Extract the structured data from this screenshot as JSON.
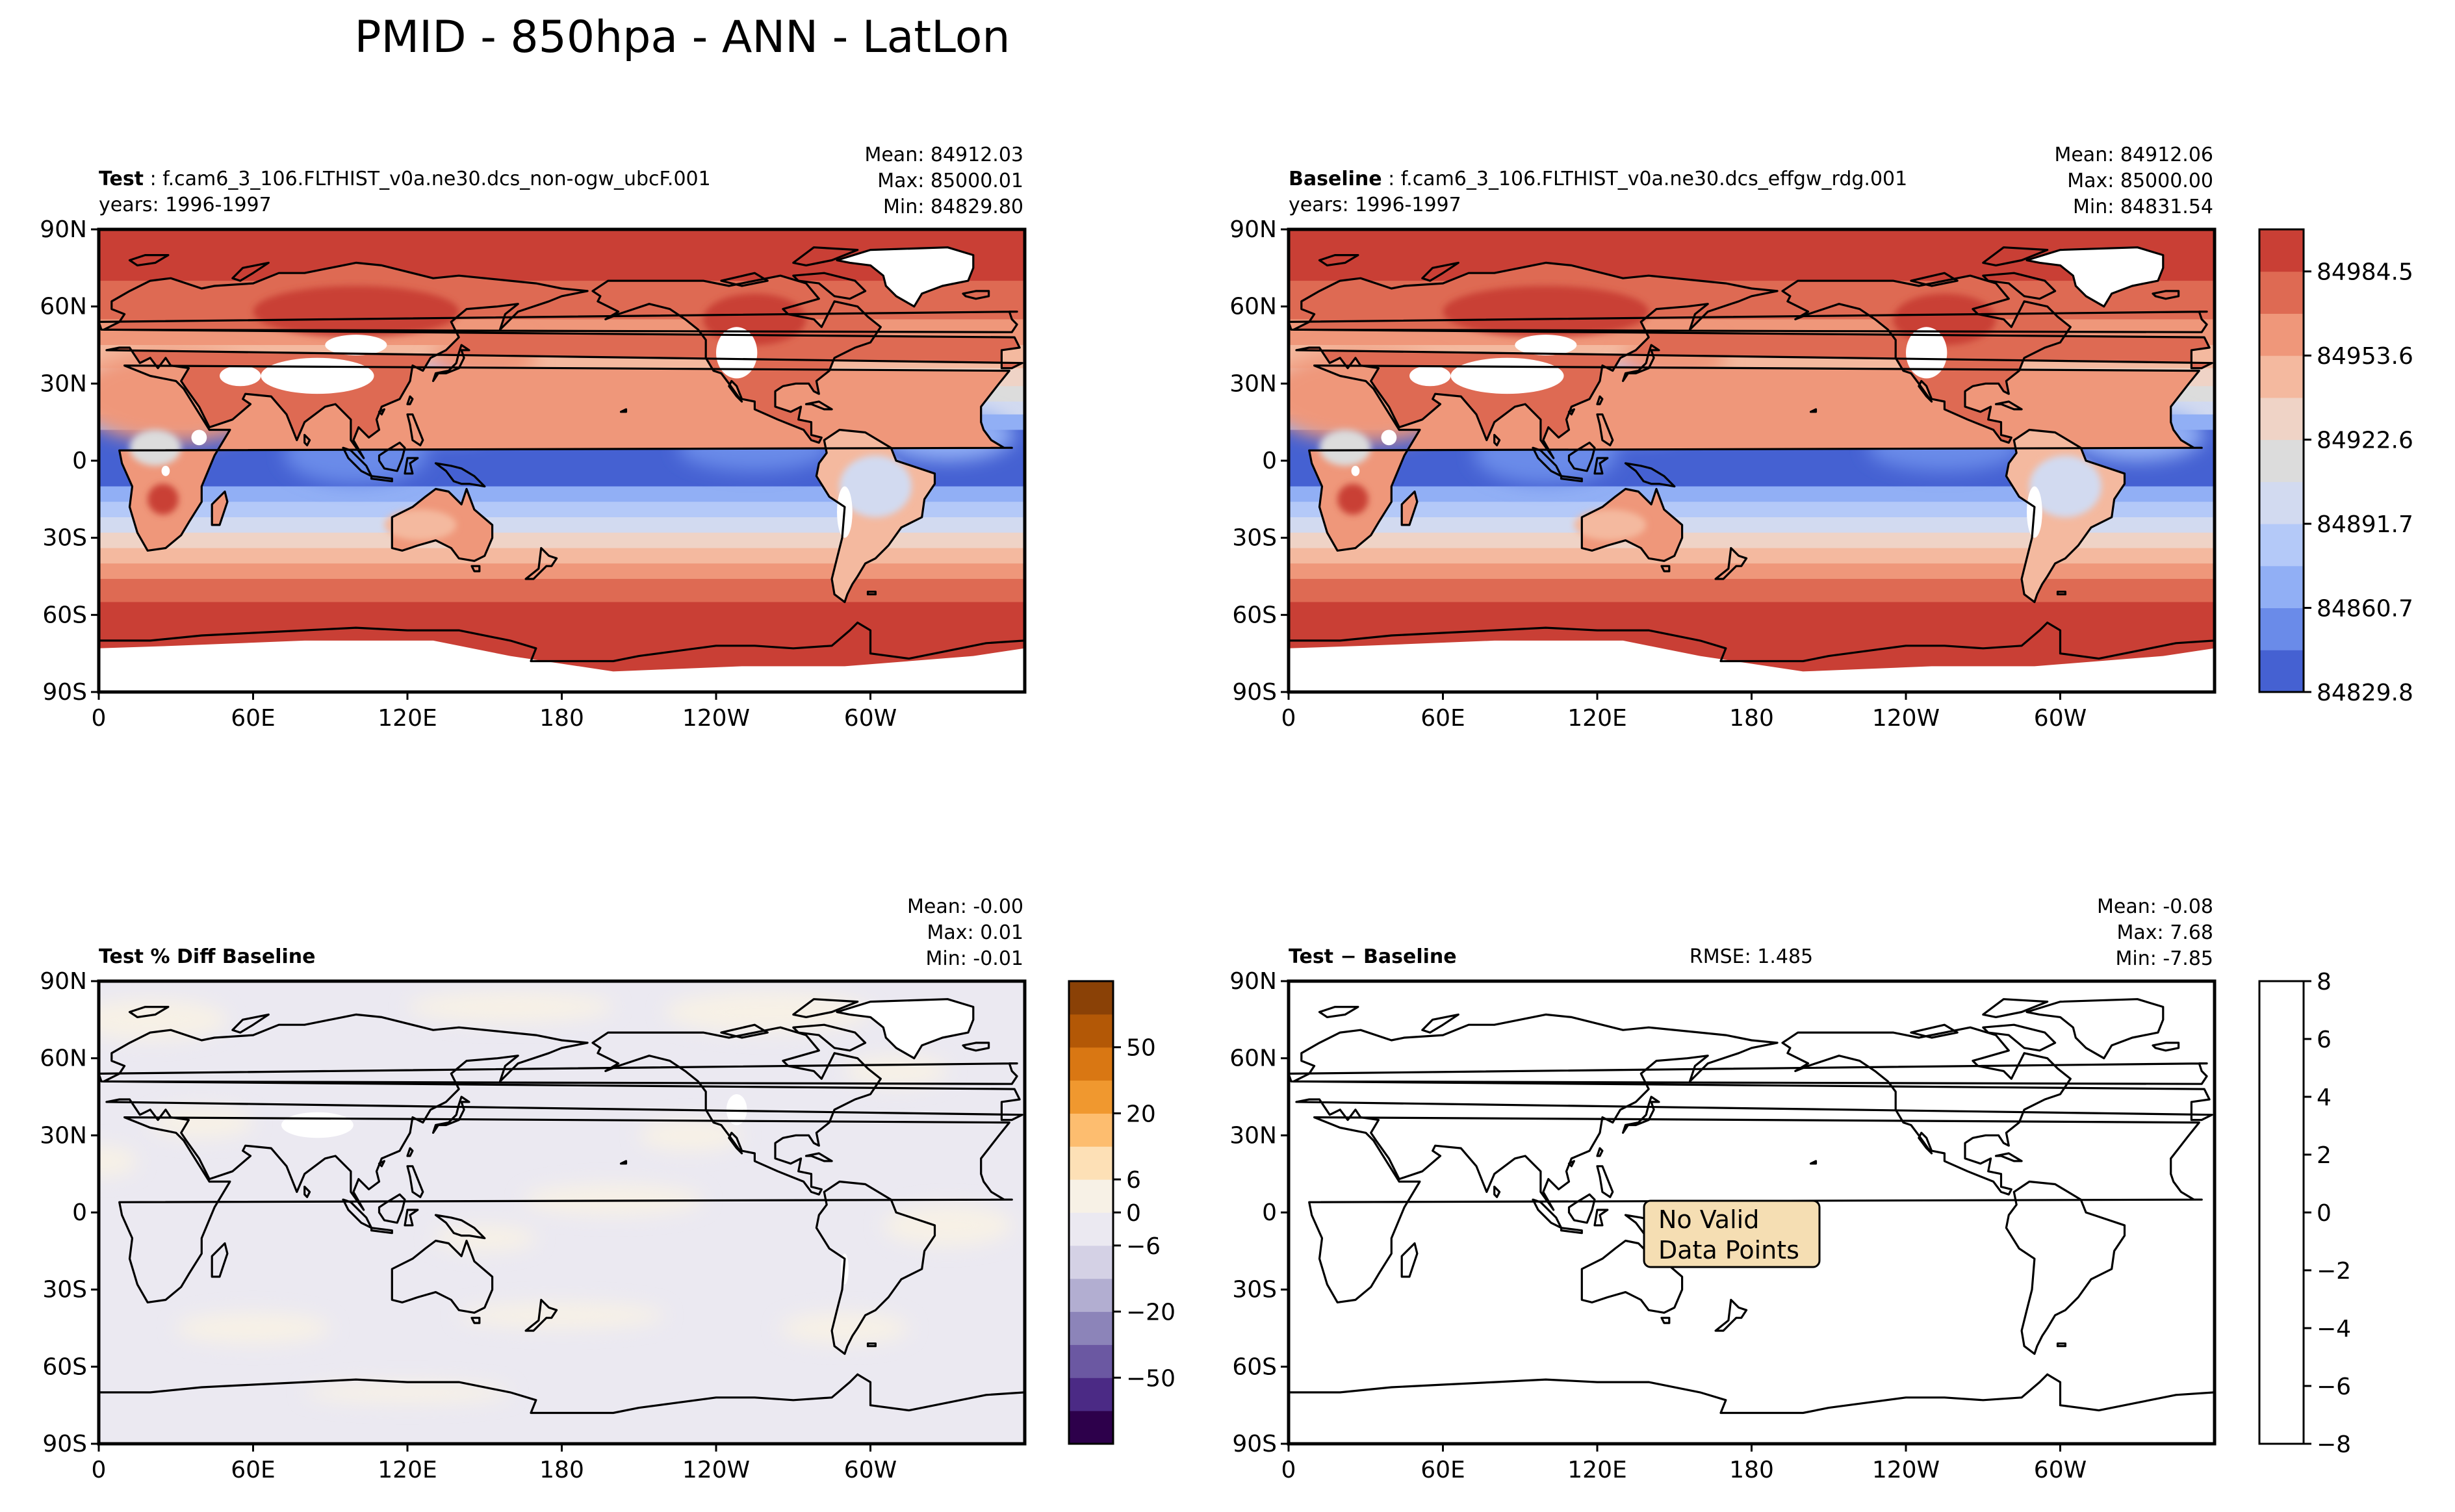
{
  "figure": {
    "title": "PMID - 850hpa - ANN - LatLon"
  },
  "colors": {
    "main_levels": [
      "#4561d2",
      "#6a8be9",
      "#91aff5",
      "#b4c9f8",
      "#d2daf0",
      "#dcdcdc",
      "#efd3c6",
      "#f4b99f",
      "#ef977a",
      "#de6a53",
      "#c93f35"
    ],
    "diff_levels": [
      "#2d004b",
      "#4b2a85",
      "#6b58a2",
      "#8c84b9",
      "#b2aed1",
      "#d4d1e5",
      "#ebe9f1",
      "#f7f1e6",
      "#fde0b6",
      "#fdbd6f",
      "#f0982f",
      "#d97713",
      "#b35806",
      "#8a4106"
    ],
    "land": "#000000",
    "panel4_bg": "#ffffff",
    "nodata_box": "#f5deb3"
  },
  "axes": {
    "yticks": [
      "90N",
      "60N",
      "30N",
      "0",
      "30S",
      "60S",
      "90S"
    ],
    "xticks": [
      "0",
      "60E",
      "120E",
      "180",
      "120W",
      "60W"
    ]
  },
  "panels": [
    {
      "id": "test",
      "label_bold": "Test",
      "label_rest": " : f.cam6_3_106.FLTHIST_v0a.ne30.dcs_non-ogw_ubcF.001",
      "years": "years: 1996-1997",
      "stats": {
        "mean": "Mean: 84912.03",
        "max": "Max: 85000.01",
        "min": "Min: 84829.80"
      }
    },
    {
      "id": "baseline",
      "label_bold": "Baseline",
      "label_rest": " : f.cam6_3_106.FLTHIST_v0a.ne30.dcs_effgw_rdg.001",
      "years": "years: 1996-1997",
      "stats": {
        "mean": "Mean: 84912.06",
        "max": "Max: 85000.00",
        "min": "Min: 84831.54"
      }
    },
    {
      "id": "pctdiff",
      "label_bold": "Test % Diff Baseline",
      "stats": {
        "mean": "Mean: -0.00",
        "max": "Max:  0.01",
        "min": "Min: -0.01"
      }
    },
    {
      "id": "diff",
      "label_bold": "Test − Baseline",
      "rmse": "RMSE: 1.485",
      "stats": {
        "mean": "Mean: -0.08",
        "max": "Max:  7.68",
        "min": "Min: -7.85"
      },
      "nodata_line1": "No Valid",
      "nodata_line2": "Data Points"
    }
  ],
  "colorbars": {
    "main": {
      "ticks": [
        "84984.5",
        "84953.6",
        "84922.6",
        "84891.7",
        "84860.7",
        "84829.8"
      ]
    },
    "pct": {
      "ticks": [
        "50",
        "20",
        "6",
        "0",
        "−6",
        "−20",
        "−50"
      ]
    },
    "diff": {
      "ticks": [
        "8",
        "6",
        "4",
        "2",
        "0",
        "−2",
        "−4",
        "−6",
        "−8"
      ]
    }
  },
  "chart_data": [
    {
      "type": "heatmap",
      "title": "Test : f.cam6_3_106.FLTHIST_v0a.ne30.dcs_non-ogw_ubcF.001",
      "variable": "PMID",
      "level": "850hpa",
      "projection": "PlateCarree, central longitude 180",
      "mean": 84912.03,
      "max": 85000.01,
      "min": 84829.8,
      "colorbar_ticks": [
        84829.8,
        84860.7,
        84891.7,
        84922.6,
        84953.6,
        84984.5
      ]
    },
    {
      "type": "heatmap",
      "title": "Baseline : f.cam6_3_106.FLTHIST_v0a.ne30.dcs_effgw_rdg.001",
      "variable": "PMID",
      "level": "850hpa",
      "projection": "PlateCarree, central longitude 180",
      "mean": 84912.06,
      "max": 85000.0,
      "min": 84831.54,
      "colorbar_ticks": [
        84829.8,
        84860.7,
        84891.7,
        84922.6,
        84953.6,
        84984.5
      ]
    },
    {
      "type": "heatmap",
      "title": "Test % Diff Baseline",
      "mean": -0.0,
      "max": 0.01,
      "min": -0.01,
      "colorbar_ticks": [
        -50,
        -20,
        -6,
        0,
        6,
        20,
        50
      ]
    },
    {
      "type": "heatmap",
      "title": "Test − Baseline",
      "rmse": 1.485,
      "mean": -0.08,
      "max": 7.68,
      "min": -7.85,
      "colorbar_ticks": [
        -8,
        -6,
        -4,
        -2,
        0,
        2,
        4,
        6,
        8
      ]
    }
  ]
}
